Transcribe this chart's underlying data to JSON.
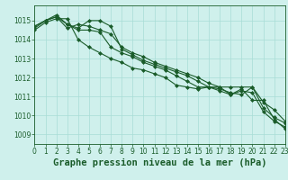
{
  "title": "Graphe pression niveau de la mer (hPa)",
  "xlim": [
    0,
    23
  ],
  "ylim": [
    1008.5,
    1015.8
  ],
  "yticks": [
    1009,
    1010,
    1011,
    1012,
    1013,
    1014,
    1015
  ],
  "xticks": [
    0,
    1,
    2,
    3,
    4,
    5,
    6,
    7,
    8,
    9,
    10,
    11,
    12,
    13,
    14,
    15,
    16,
    17,
    18,
    19,
    20,
    21,
    22,
    23
  ],
  "background_color": "#cff0ec",
  "grid_color": "#a8ddd6",
  "line_color": "#1a5c2a",
  "series": [
    [
      1014.5,
      1014.9,
      1015.1,
      1015.1,
      1014.0,
      1013.6,
      1013.3,
      1013.0,
      1012.8,
      1012.5,
      1012.4,
      1012.2,
      1012.0,
      1011.6,
      1011.5,
      1011.4,
      1011.5,
      1011.5,
      1011.1,
      1011.4,
      1010.8,
      1010.8,
      1009.8,
      1009.3
    ],
    [
      1014.6,
      1015.0,
      1015.3,
      1014.8,
      1014.5,
      1014.5,
      1014.4,
      1013.6,
      1013.3,
      1013.1,
      1012.8,
      1012.6,
      1012.4,
      1012.1,
      1011.8,
      1011.5,
      1011.5,
      1011.3,
      1011.1,
      1011.3,
      1011.2,
      1010.2,
      1009.7,
      1009.4
    ],
    [
      1014.7,
      1015.0,
      1015.2,
      1014.6,
      1014.8,
      1014.7,
      1014.5,
      1014.3,
      1013.6,
      1013.3,
      1013.1,
      1012.8,
      1012.6,
      1012.4,
      1012.2,
      1012.0,
      1011.7,
      1011.5,
      1011.5,
      1011.5,
      1011.5,
      1010.4,
      1009.9,
      1009.6
    ],
    [
      1014.7,
      1015.0,
      1015.2,
      1014.8,
      1014.6,
      1015.0,
      1015.0,
      1014.7,
      1013.5,
      1013.2,
      1012.9,
      1012.7,
      1012.5,
      1012.3,
      1012.1,
      1011.8,
      1011.5,
      1011.4,
      1011.2,
      1011.1,
      1011.5,
      1010.7,
      1010.3,
      1009.7
    ]
  ],
  "marker": "D",
  "markersize": 2.0,
  "linewidth": 0.8,
  "title_fontsize": 7.5,
  "tick_fontsize": 5.5
}
